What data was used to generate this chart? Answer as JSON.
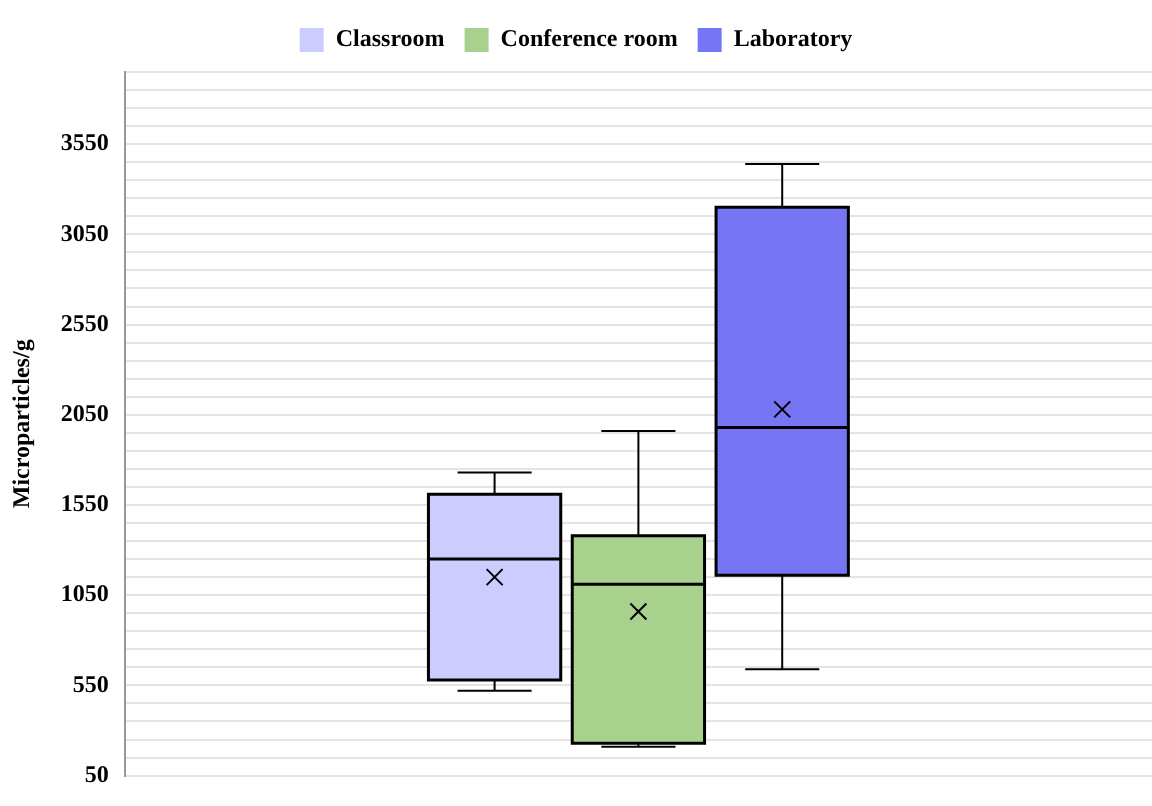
{
  "chart_data": {
    "type": "box",
    "ylabel": "Microparticles/g",
    "categories": [
      null
    ],
    "series": [
      {
        "name": "Classroom",
        "color": "#ccccff",
        "boxes": [
          {
            "low": 520,
            "q1": 580,
            "median": 1250,
            "q3": 1610,
            "high": 1730,
            "mean": 1150
          }
        ]
      },
      {
        "name": "Conference room",
        "color": "#a9d18e",
        "boxes": [
          {
            "low": 210,
            "q1": 230,
            "median": 1110,
            "q3": 1380,
            "high": 1960,
            "mean": 960
          }
        ]
      },
      {
        "name": "Laboratory",
        "color": "#7676f5",
        "boxes": [
          {
            "low": 640,
            "q1": 1160,
            "median": 1980,
            "q3": 3200,
            "high": 3440,
            "mean": 2080
          }
        ]
      }
    ],
    "ylim": [
      50,
      3950
    ],
    "yticks": [
      50,
      {
        "value": 150,
        "label": null
      },
      {
        "value": 250,
        "label": null
      },
      {
        "value": 350,
        "label": null
      },
      {
        "value": 450,
        "label": null
      },
      550,
      {
        "value": 650,
        "label": null
      },
      {
        "value": 750,
        "label": null
      },
      {
        "value": 850,
        "label": null
      },
      {
        "value": 950,
        "label": null
      },
      1050,
      {
        "value": 1150,
        "label": null
      },
      {
        "value": 1250,
        "label": null
      },
      {
        "value": 1350,
        "label": null
      },
      {
        "value": 1450,
        "label": null
      },
      1550,
      {
        "value": 1650,
        "label": null
      },
      {
        "value": 1750,
        "label": null
      },
      {
        "value": 1850,
        "label": null
      },
      {
        "value": 1950,
        "label": null
      },
      2050,
      {
        "value": 2150,
        "label": null
      },
      {
        "value": 2250,
        "label": null
      },
      {
        "value": 2350,
        "label": null
      },
      {
        "value": 2450,
        "label": null
      },
      2550,
      {
        "value": 2650,
        "label": null
      },
      {
        "value": 2750,
        "label": null
      },
      {
        "value": 2850,
        "label": null
      },
      {
        "value": 2950,
        "label": null
      },
      3050,
      {
        "value": 3150,
        "label": null
      },
      {
        "value": 3250,
        "label": null
      },
      {
        "value": 3350,
        "label": null
      },
      {
        "value": 3450,
        "label": null
      },
      3550,
      {
        "value": 3650,
        "label": null
      },
      {
        "value": 3750,
        "label": null
      },
      {
        "value": 3850,
        "label": null
      },
      {
        "value": 3950,
        "label": null
      }
    ],
    "grid": "y",
    "legend": "top",
    "tick_labels": "y",
    "marker": "cross"
  }
}
